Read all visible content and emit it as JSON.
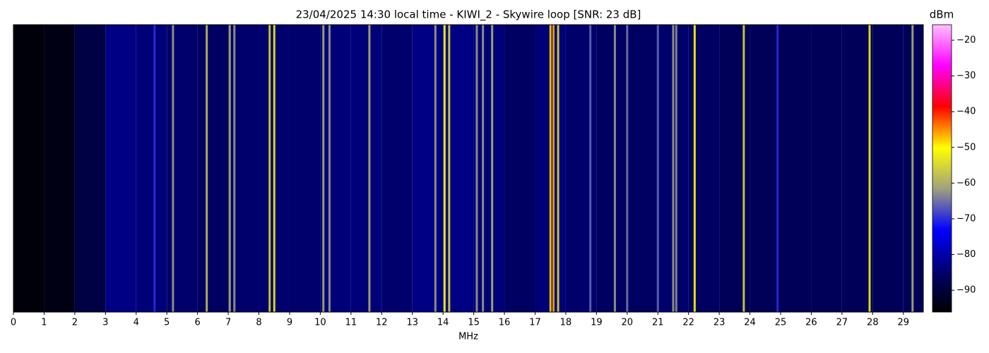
{
  "chart_data": {
    "type": "waterfall",
    "title": "23/04/2025 14:30 local time - KIWI_2 - Skywire loop [SNR: 23 dB]",
    "xlabel": "MHz",
    "colorbar_label": "dBm",
    "xlim": [
      0,
      29.65
    ],
    "xticks": [
      0,
      1,
      2,
      3,
      4,
      5,
      6,
      7,
      8,
      9,
      10,
      11,
      12,
      13,
      14,
      15,
      16,
      17,
      18,
      19,
      20,
      21,
      22,
      23,
      24,
      25,
      26,
      27,
      28,
      29
    ],
    "clim": [
      -96.1,
      -15.65
    ],
    "cticks": [
      {
        "value": -20,
        "label": "−20"
      },
      {
        "value": -30,
        "label": "−30"
      },
      {
        "value": -40,
        "label": "−40"
      },
      {
        "value": -50,
        "label": "−50"
      },
      {
        "value": -60,
        "label": "−60"
      },
      {
        "value": -70,
        "label": "−70"
      },
      {
        "value": -80,
        "label": "−80"
      },
      {
        "value": -90,
        "label": "−90"
      }
    ],
    "colormap": [
      "#000000",
      "#000070",
      "#0000ff",
      "#a0a080",
      "#ffff00",
      "#ff0000",
      "#ff00ff",
      "#ffc0ff"
    ],
    "noise_floor": {
      "x": [
        0,
        1,
        2,
        3,
        4,
        5,
        6,
        7,
        8,
        9,
        10,
        11,
        12,
        13,
        14,
        15,
        16,
        17,
        18,
        19,
        20,
        21,
        22,
        23,
        24,
        25,
        26,
        27,
        28,
        29
      ],
      "values": [
        -95,
        -94,
        -89,
        -83,
        -84,
        -85,
        -86,
        -85,
        -85,
        -85,
        -84,
        -84,
        -85,
        -83,
        -83,
        -84,
        -86,
        -84,
        -85,
        -86,
        -86,
        -85,
        -86,
        -87,
        -87,
        -87,
        -87,
        -87,
        -87,
        -87
      ]
    },
    "signals": {
      "x": [
        4.6,
        5.2,
        6.3,
        7.05,
        7.2,
        8.35,
        8.5,
        10.1,
        10.3,
        11.6,
        13.75,
        14.05,
        14.2,
        15.1,
        15.3,
        15.6,
        17.5,
        17.6,
        17.75,
        18.8,
        19.6,
        20.0,
        21.0,
        21.5,
        21.6,
        22.2,
        23.8,
        24.9,
        27.9,
        29.3
      ],
      "values": [
        -70,
        -62,
        -58,
        -60,
        -62,
        -55,
        -52,
        -60,
        -62,
        -60,
        -62,
        -50,
        -55,
        -62,
        -62,
        -60,
        -48,
        -46,
        -55,
        -66,
        -62,
        -65,
        -66,
        -62,
        -63,
        -50,
        -55,
        -70,
        -52,
        -60
      ]
    }
  }
}
